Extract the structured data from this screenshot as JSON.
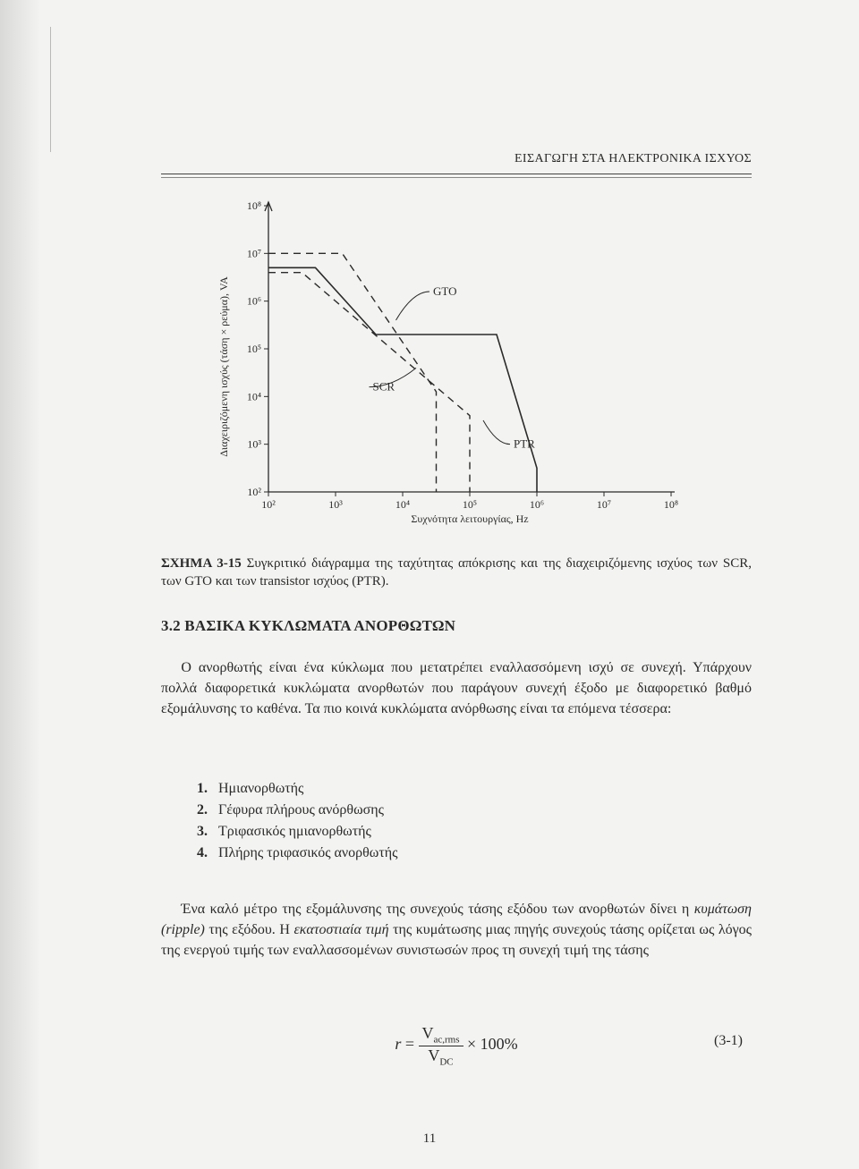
{
  "page": {
    "running_head": "ΕΙΣΑΓΩΓΗ ΣΤΑ ΗΛΕΚΤΡΟΝΙΚΑ ΙΣΧΥΟΣ",
    "number": "11"
  },
  "chart": {
    "type": "line",
    "x_axis": {
      "label": "Συχνότητα λειτουργίας, Hz",
      "ticks": [
        "10²",
        "10³",
        "10⁴",
        "10⁵",
        "10⁶",
        "10⁷",
        "10⁸"
      ],
      "log_range": [
        2,
        8
      ],
      "fontsize": 12
    },
    "y_axis": {
      "label": "Διαχειριζόμενη ισχύς (τάση × ρεύμα), VA",
      "ticks": [
        "10²",
        "10³",
        "10⁴",
        "10⁵",
        "10⁶",
        "10⁷",
        "10⁸"
      ],
      "log_range": [
        2,
        8
      ],
      "fontsize": 12
    },
    "series": {
      "scr": {
        "label": "SCR",
        "style": "solid",
        "color": "#2a2a2a",
        "width": 1.6,
        "points": [
          [
            2,
            6.7
          ],
          [
            2.7,
            6.7
          ],
          [
            3.6,
            5.3
          ],
          [
            5.4,
            5.3
          ],
          [
            6.0,
            2.5
          ],
          [
            6.0,
            2
          ]
        ]
      },
      "gto": {
        "label": "GTO",
        "style": "dashed",
        "color": "#2a2a2a",
        "width": 1.4,
        "points": [
          [
            2,
            7
          ],
          [
            3.1,
            7
          ],
          [
            4.5,
            4.1
          ],
          [
            4.5,
            2
          ]
        ]
      },
      "ptr": {
        "label": "PTR",
        "style": "dashed",
        "color": "#2a2a2a",
        "width": 1.4,
        "points": [
          [
            2,
            6.6
          ],
          [
            2.5,
            6.6
          ],
          [
            5.0,
            3.6
          ],
          [
            5.0,
            2
          ]
        ]
      }
    },
    "callouts": {
      "gto": {
        "label": "GTO",
        "at": [
          4.4,
          6.2
        ]
      },
      "scr": {
        "label": "SCR",
        "at": [
          3.5,
          4.2
        ]
      },
      "ptr": {
        "label": "PTR",
        "at": [
          5.6,
          3.0
        ]
      }
    },
    "background": "#f3f3f1",
    "axis_color": "#2a2a2a"
  },
  "caption": {
    "lead": "ΣΧΗΜΑ 3-15",
    "text": " Συγκριτικό διάγραμμα της ταχύτητας απόκρισης και της διαχειριζόμενης ισχύος των SCR, των GTO και των transistor ισχύος (PTR)."
  },
  "section": {
    "heading": "3.2 ΒΑΣΙΚΑ ΚΥΚΛΩΜΑΤΑ ΑΝΟΡΘΩΤΩΝ",
    "para1": "Ο ανορθωτής είναι ένα κύκλωμα που μετατρέπει εναλλασσόμενη ισχύ σε συνεχή. Υπάρχουν πολλά διαφορετικά κυκλώματα ανορθωτών που παράγουν συνεχή έξοδο με διαφορετικό βαθμό εξομάλυνσης το καθένα. Τα πιο κοινά κυκλώματα ανόρθωσης είναι τα επόμενα τέσσερα:",
    "list": [
      "Ημιανορθωτής",
      "Γέφυρα πλήρους ανόρθωσης",
      "Τριφασικός ημιανορθωτής",
      "Πλήρης τριφασικός ανορθωτής"
    ],
    "para2_a": "Ένα καλό μέτρο της εξομάλυνσης της συνεχούς τάσης εξόδου των ανορθωτών δίνει η ",
    "para2_em1": "κυμάτωση (ripple)",
    "para2_b": " της εξόδου. Η ",
    "para2_em2": "εκατοστιαία τιμή",
    "para2_c": " της κυμάτωσης μιας πηγής συνεχούς τάσης ορίζεται ως λόγος της ενεργού τιμής των εναλλασσομένων συνιστωσών προς τη συνεχή τιμή της τάσης"
  },
  "equation": {
    "lhs": "r",
    "eq": " = ",
    "num_sym": "V",
    "num_sub": "ac,rms",
    "den_sym": "V",
    "den_sub": "DC",
    "tail": " × 100%",
    "number": "(3-1)"
  }
}
